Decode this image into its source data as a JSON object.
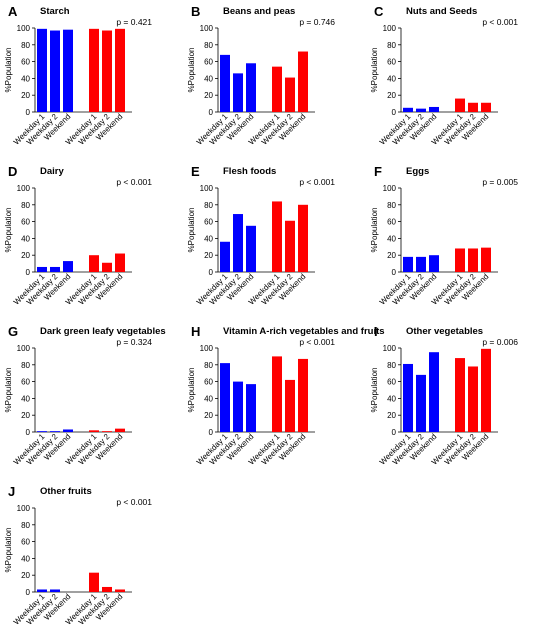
{
  "chart_data": [
    {
      "type": "bar",
      "label": "A",
      "title": "Starch",
      "annotation": "p = 0.421",
      "y_label": "%Population",
      "categories": [
        "Weekday 1",
        "Weekday 2",
        "Weekend",
        "Weekday 1",
        "Weekday 2",
        "Weekend"
      ],
      "values": [
        99,
        97,
        98,
        99,
        97,
        99
      ],
      "colors": [
        "#0000ff",
        "#0000ff",
        "#0000ff",
        "#ff0000",
        "#ff0000",
        "#ff0000"
      ],
      "ylim": [
        0,
        100
      ],
      "yticks": [
        0,
        20,
        40,
        60,
        80,
        100
      ]
    },
    {
      "type": "bar",
      "label": "B",
      "title": "Beans and peas",
      "annotation": "p = 0.746",
      "y_label": "%Population",
      "categories": [
        "Weekday 1",
        "Weekday 2",
        "Weekend",
        "Weekday 1",
        "Weekday 2",
        "Weekend"
      ],
      "values": [
        68,
        46,
        58,
        54,
        41,
        72
      ],
      "colors": [
        "#0000ff",
        "#0000ff",
        "#0000ff",
        "#ff0000",
        "#ff0000",
        "#ff0000"
      ],
      "ylim": [
        0,
        100
      ],
      "yticks": [
        0,
        20,
        40,
        60,
        80,
        100
      ]
    },
    {
      "type": "bar",
      "label": "C",
      "title": "Nuts and Seeds",
      "annotation": "p < 0.001",
      "y_label": "%Population",
      "categories": [
        "Weekday 1",
        "Weekday 2",
        "Weekend",
        "Weekday 1",
        "Weekday 2",
        "Weekend"
      ],
      "values": [
        5,
        4,
        6,
        16,
        11,
        11
      ],
      "colors": [
        "#0000ff",
        "#0000ff",
        "#0000ff",
        "#ff0000",
        "#ff0000",
        "#ff0000"
      ],
      "ylim": [
        0,
        100
      ],
      "yticks": [
        0,
        20,
        40,
        60,
        80,
        100
      ]
    },
    {
      "type": "bar",
      "label": "D",
      "title": "Dairy",
      "annotation": "p < 0.001",
      "y_label": "%Population",
      "categories": [
        "Weekday 1",
        "Weekday 2",
        "Weekend",
        "Weekday 1",
        "Weekday 2",
        "Weekend"
      ],
      "values": [
        6,
        6,
        13,
        20,
        11,
        22
      ],
      "colors": [
        "#0000ff",
        "#0000ff",
        "#0000ff",
        "#ff0000",
        "#ff0000",
        "#ff0000"
      ],
      "ylim": [
        0,
        100
      ],
      "yticks": [
        0,
        20,
        40,
        60,
        80,
        100
      ]
    },
    {
      "type": "bar",
      "label": "E",
      "title": "Flesh foods",
      "annotation": "p < 0.001",
      "y_label": "%Population",
      "categories": [
        "Weekday 1",
        "Weekday 2",
        "Weekend",
        "Weekday 1",
        "Weekday 2",
        "Weekend"
      ],
      "values": [
        36,
        69,
        55,
        84,
        61,
        80
      ],
      "colors": [
        "#0000ff",
        "#0000ff",
        "#0000ff",
        "#ff0000",
        "#ff0000",
        "#ff0000"
      ],
      "ylim": [
        0,
        100
      ],
      "yticks": [
        0,
        20,
        40,
        60,
        80,
        100
      ]
    },
    {
      "type": "bar",
      "label": "F",
      "title": "Eggs",
      "annotation": "p = 0.005",
      "y_label": "%Population",
      "categories": [
        "Weekday 1",
        "Weekday 2",
        "Weekend",
        "Weekday 1",
        "Weekday 2",
        "Weekend"
      ],
      "values": [
        18,
        18,
        20,
        28,
        28,
        29
      ],
      "colors": [
        "#0000ff",
        "#0000ff",
        "#0000ff",
        "#ff0000",
        "#ff0000",
        "#ff0000"
      ],
      "ylim": [
        0,
        100
      ],
      "yticks": [
        0,
        20,
        40,
        60,
        80,
        100
      ]
    },
    {
      "type": "bar",
      "label": "G",
      "title": "Dark green leafy vegetables",
      "annotation": "p = 0.324",
      "y_label": "%Population",
      "categories": [
        "Weekday 1",
        "Weekday 2",
        "Weekend",
        "Weekday 1",
        "Weekday 2",
        "Weekend"
      ],
      "values": [
        1,
        1,
        3,
        2,
        1,
        4
      ],
      "colors": [
        "#0000ff",
        "#0000ff",
        "#0000ff",
        "#ff0000",
        "#ff0000",
        "#ff0000"
      ],
      "ylim": [
        0,
        100
      ],
      "yticks": [
        0,
        20,
        40,
        60,
        80,
        100
      ]
    },
    {
      "type": "bar",
      "label": "H",
      "title": "Vitamin A-rich vegetables and fruits",
      "annotation": "p < 0.001",
      "y_label": "%Population",
      "categories": [
        "Weekday 1",
        "Weekday 2",
        "Weekend",
        "Weekday 1",
        "Weekday 2",
        "Weekend"
      ],
      "values": [
        82,
        60,
        57,
        90,
        62,
        87
      ],
      "colors": [
        "#0000ff",
        "#0000ff",
        "#0000ff",
        "#ff0000",
        "#ff0000",
        "#ff0000"
      ],
      "ylim": [
        0,
        100
      ],
      "yticks": [
        0,
        20,
        40,
        60,
        80,
        100
      ]
    },
    {
      "type": "bar",
      "label": "I",
      "title": "Other vegetables",
      "annotation": "p = 0.006",
      "y_label": "%Population",
      "categories": [
        "Weekday 1",
        "Weekday 2",
        "Weekend",
        "Weekday 1",
        "Weekday 2",
        "Weekend"
      ],
      "values": [
        81,
        68,
        95,
        88,
        78,
        99
      ],
      "colors": [
        "#0000ff",
        "#0000ff",
        "#0000ff",
        "#ff0000",
        "#ff0000",
        "#ff0000"
      ],
      "ylim": [
        0,
        100
      ],
      "yticks": [
        0,
        20,
        40,
        60,
        80,
        100
      ]
    },
    {
      "type": "bar",
      "label": "J",
      "title": "Other fruits",
      "annotation": "p < 0.001",
      "y_label": "%Population",
      "categories": [
        "Weekday 1",
        "Weekday 2",
        "Weekend",
        "Weekday 1",
        "Weekday 2",
        "Weekend"
      ],
      "values": [
        3,
        3,
        0,
        23,
        6,
        3
      ],
      "colors": [
        "#0000ff",
        "#0000ff",
        "#0000ff",
        "#ff0000",
        "#ff0000",
        "#ff0000"
      ],
      "ylim": [
        0,
        100
      ],
      "yticks": [
        0,
        20,
        40,
        60,
        80,
        100
      ]
    }
  ]
}
